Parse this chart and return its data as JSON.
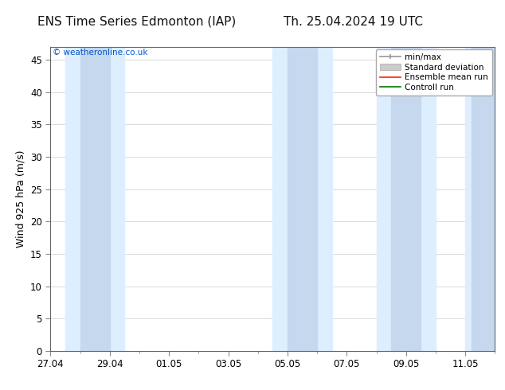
{
  "title_left": "ENS Time Series Edmonton (IAP)",
  "title_right": "Th. 25.04.2024 19 UTC",
  "ylabel": "Wind 925 hPa (m/s)",
  "watermark": "© weatheronline.co.uk",
  "watermark_color": "#0055cc",
  "ylim": [
    0,
    47
  ],
  "yticks": [
    0,
    5,
    10,
    15,
    20,
    25,
    30,
    35,
    40,
    45
  ],
  "background_color": "#ffffff",
  "plot_bg_color": "#ffffff",
  "shaded_band_color": "#ddeeff",
  "std_band_color": "#c5d8ee",
  "grid_color": "#cccccc",
  "title_fontsize": 11,
  "axis_label_fontsize": 9,
  "tick_fontsize": 8.5,
  "x_tick_labels": [
    "27.04",
    "29.04",
    "01.05",
    "03.05",
    "05.05",
    "07.05",
    "09.05",
    "11.05"
  ],
  "x_tick_positions": [
    0,
    2,
    4,
    6,
    8,
    10,
    12,
    14
  ],
  "x_min": 0,
  "x_max": 15,
  "shaded_columns": [
    {
      "start": 0.5,
      "end": 2.5
    },
    {
      "start": 7.5,
      "end": 9.5
    },
    {
      "start": 11.0,
      "end": 13.0
    },
    {
      "start": 14.0,
      "end": 15.0
    }
  ],
  "std_columns": [
    {
      "start": 1.0,
      "end": 2.0
    },
    {
      "start": 8.0,
      "end": 9.0
    },
    {
      "start": 11.5,
      "end": 12.5
    },
    {
      "start": 14.2,
      "end": 15.0
    }
  ],
  "legend_labels": [
    "min/max",
    "Standard deviation",
    "Ensemble mean run",
    "Controll run"
  ],
  "legend_colors_line": [
    "#999999",
    "#bbbbbb",
    "#ff0000",
    "#00aa00"
  ]
}
